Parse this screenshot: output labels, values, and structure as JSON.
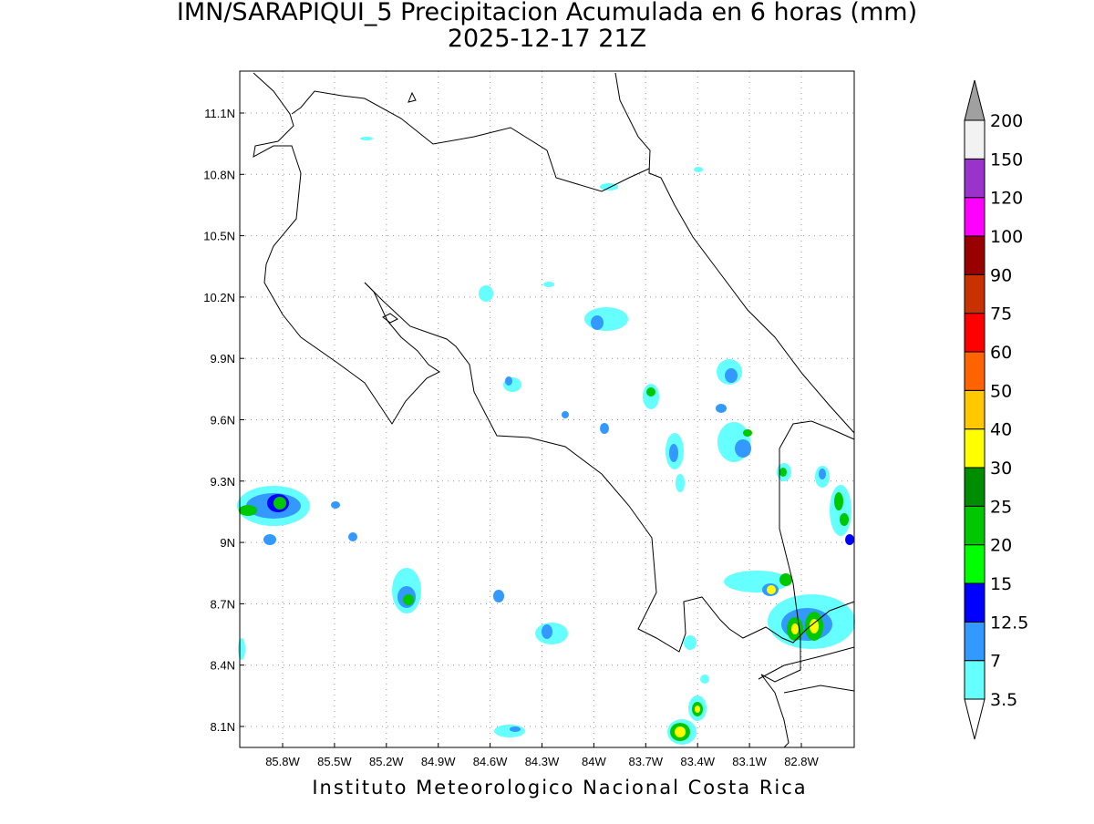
{
  "title": "IMN/SARAPIQUI_5 Precipitacion Acumulada en 6 horas (mm)",
  "subtitle": "2025-12-17 21Z",
  "map": {
    "lon_ticks": [
      "85.8W",
      "85.5W",
      "85.2W",
      "84.9W",
      "84.6W",
      "84.3W",
      "84W",
      "83.7W",
      "83.4W",
      "83.1W",
      "82.8W"
    ],
    "lat_ticks": [
      "11.1N",
      "10.8N",
      "10.5N",
      "10.2N",
      "9.9N",
      "9.6N",
      "9.3N",
      "9N",
      "8.7N",
      "8.4N",
      "8.1N"
    ]
  },
  "colorbar": {
    "levels": [
      3.5,
      7,
      12.5,
      15,
      20,
      25,
      30,
      40,
      50,
      60,
      75,
      90,
      100,
      120,
      150,
      200
    ],
    "colors": [
      "#66ffff",
      "#3399ff",
      "#0000ff",
      "#00ff00",
      "#00c800",
      "#008c00",
      "#ffff00",
      "#ffc800",
      "#ff6400",
      "#ff0000",
      "#c83200",
      "#990000",
      "#ff00ff",
      "#9933cc",
      "#f2f2f2"
    ],
    "under_color": "#ffffff",
    "over_color": "#a0a0a0"
  },
  "footer": "Instituto Meteorologico Nacional Costa Rica"
}
